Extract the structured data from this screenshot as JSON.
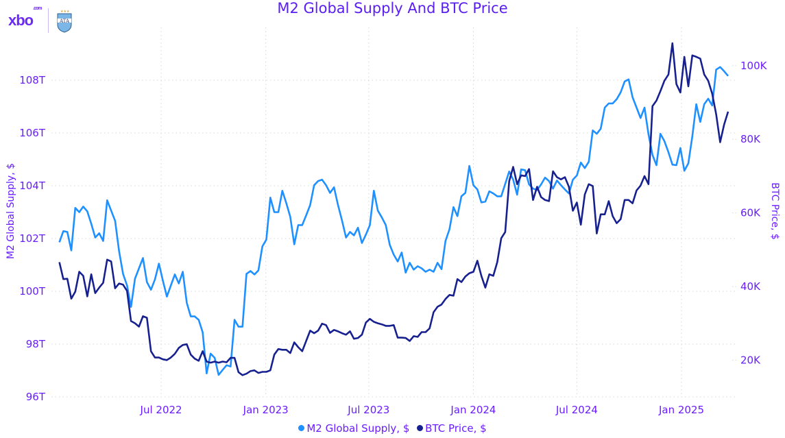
{
  "chart_data": {
    "type": "line",
    "title": "M2 Global Supply And BTC Price",
    "x_start": "2022-01-03",
    "x_step_days": 7,
    "xlim": [
      "2021-12-20",
      "2025-04-05"
    ],
    "x_ticks": [
      {
        "date": "2022-07-01",
        "label": "Jul 2022"
      },
      {
        "date": "2023-01-01",
        "label": "Jan 2023"
      },
      {
        "date": "2023-07-01",
        "label": "Jul 2023"
      },
      {
        "date": "2024-01-01",
        "label": "Jan 2024"
      },
      {
        "date": "2024-07-01",
        "label": "Jul 2024"
      },
      {
        "date": "2025-01-01",
        "label": "Jan 2025"
      }
    ],
    "y_left": {
      "label": "M2 Global Supply, $",
      "ylim": [
        96,
        110
      ],
      "ticks": [
        {
          "v": 96,
          "label": "96T"
        },
        {
          "v": 98,
          "label": "98T"
        },
        {
          "v": 100,
          "label": "100T"
        },
        {
          "v": 102,
          "label": "102T"
        },
        {
          "v": 104,
          "label": "104T"
        },
        {
          "v": 106,
          "label": "106T"
        },
        {
          "v": 108,
          "label": "108T"
        }
      ]
    },
    "y_right": {
      "label": "BTC Price, $",
      "ylim": [
        10,
        110.4
      ],
      "ticks": [
        {
          "v": 20,
          "label": "20K"
        },
        {
          "v": 40,
          "label": "40K"
        },
        {
          "v": 60,
          "label": "60K"
        },
        {
          "v": 80,
          "label": "80K"
        },
        {
          "v": 100,
          "label": "100K"
        }
      ]
    },
    "grid": true,
    "legend_position": "bottom-center",
    "series": [
      {
        "name": "M2 Global Supply, $",
        "axis": "left",
        "unit": "T",
        "color": "#1e90ff",
        "values": [
          101.86,
          102.28,
          102.25,
          101.55,
          103.16,
          103.0,
          103.21,
          103.03,
          102.56,
          102.04,
          102.2,
          101.91,
          103.45,
          103.06,
          102.67,
          101.52,
          100.66,
          100.22,
          99.41,
          100.48,
          100.87,
          101.26,
          100.35,
          100.06,
          100.45,
          101.05,
          100.4,
          99.8,
          100.22,
          100.64,
          100.3,
          100.74,
          99.57,
          99.05,
          99.05,
          98.92,
          98.45,
          96.89,
          97.64,
          97.48,
          96.83,
          97.02,
          97.2,
          97.15,
          98.92,
          98.66,
          98.66,
          100.66,
          100.77,
          100.64,
          100.79,
          101.7,
          101.96,
          103.55,
          103.0,
          103.0,
          103.81,
          103.34,
          102.82,
          101.78,
          102.51,
          102.51,
          102.88,
          103.27,
          104.02,
          104.18,
          104.23,
          104.02,
          103.73,
          103.94,
          103.27,
          102.69,
          102.04,
          102.25,
          102.12,
          102.41,
          101.83,
          102.15,
          102.51,
          103.81,
          103.06,
          102.8,
          102.51,
          101.76,
          101.39,
          101.13,
          101.47,
          100.71,
          101.08,
          100.82,
          100.95,
          100.87,
          100.74,
          100.82,
          100.74,
          101.08,
          100.84,
          101.91,
          102.35,
          103.19,
          102.85,
          103.6,
          103.73,
          104.75,
          104.02,
          103.86,
          103.37,
          103.4,
          103.79,
          103.71,
          103.6,
          103.6,
          104.07,
          104.54,
          104.23,
          103.66,
          104.62,
          104.59,
          104.05,
          103.89,
          103.84,
          104.05,
          104.31,
          104.18,
          103.89,
          104.2,
          104.02,
          103.86,
          103.71,
          104.23,
          104.39,
          104.88,
          104.67,
          104.91,
          106.1,
          105.97,
          106.16,
          106.96,
          107.12,
          107.12,
          107.28,
          107.54,
          107.95,
          108.03,
          107.35,
          106.96,
          106.57,
          106.96,
          105.95,
          105.17,
          104.78,
          105.97,
          105.69,
          105.27,
          104.8,
          104.78,
          105.43,
          104.57,
          104.85,
          105.87,
          107.09,
          106.42,
          107.09,
          107.3,
          107.04,
          108.4,
          108.5,
          108.34,
          108.16
        ]
      },
      {
        "name": "BTC Price, $",
        "axis": "right",
        "unit": "K",
        "color": "#17208f",
        "values": [
          46.6,
          42.0,
          42.1,
          36.7,
          38.6,
          44.0,
          42.9,
          37.3,
          43.3,
          38.2,
          39.7,
          41.0,
          47.3,
          46.8,
          39.5,
          40.8,
          40.5,
          38.8,
          30.6,
          30.0,
          29.1,
          31.9,
          31.5,
          22.4,
          20.7,
          20.7,
          20.2,
          20.0,
          20.7,
          21.7,
          23.3,
          24.1,
          24.3,
          21.5,
          20.4,
          19.8,
          22.4,
          19.6,
          19.3,
          19.6,
          19.3,
          19.6,
          19.4,
          20.6,
          20.6,
          16.7,
          15.9,
          16.3,
          17.0,
          17.2,
          16.5,
          16.8,
          16.8,
          17.2,
          21.5,
          23.0,
          22.8,
          22.8,
          21.9,
          24.8,
          23.5,
          22.4,
          25.2,
          28.0,
          27.3,
          28.0,
          29.9,
          29.5,
          27.4,
          28.2,
          27.8,
          27.3,
          26.9,
          27.8,
          25.8,
          26.0,
          26.9,
          30.2,
          31.2,
          30.4,
          30.0,
          29.7,
          29.3,
          29.3,
          29.5,
          26.1,
          26.1,
          26.0,
          25.2,
          26.5,
          26.3,
          27.6,
          27.6,
          28.6,
          33.0,
          34.5,
          35.1,
          36.6,
          37.7,
          37.5,
          42.0,
          41.2,
          42.7,
          43.6,
          44.0,
          47.0,
          42.9,
          39.7,
          43.3,
          42.9,
          46.6,
          53.1,
          54.8,
          68.6,
          72.5,
          67.8,
          70.2,
          70.0,
          71.9,
          63.5,
          67.1,
          64.3,
          63.5,
          63.2,
          71.3,
          69.7,
          69.1,
          69.7,
          67.1,
          60.6,
          62.8,
          56.8,
          65.0,
          67.8,
          67.3,
          54.4,
          59.6,
          59.6,
          63.2,
          59.1,
          57.2,
          58.3,
          63.5,
          63.5,
          62.6,
          66.1,
          67.4,
          70.0,
          67.8,
          89.0,
          90.5,
          93.1,
          95.9,
          97.6,
          106.1,
          95.0,
          92.7,
          102.4,
          94.4,
          102.8,
          102.4,
          101.9,
          97.6,
          95.9,
          92.4,
          86.8,
          79.2,
          84.0,
          87.5
        ]
      }
    ]
  },
  "logo": {
    "brand": "xbo",
    "suffix": ".com",
    "crest": "AFA"
  }
}
